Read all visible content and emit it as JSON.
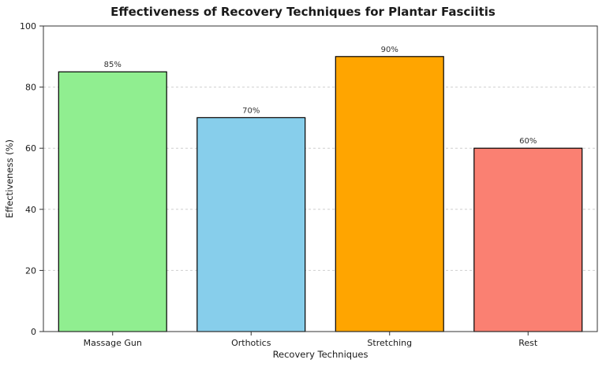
{
  "title": "Effectiveness of Recovery Techniques for Plantar Fasciitis",
  "chart_data": {
    "type": "bar",
    "title": "Effectiveness of Recovery Techniques for Plantar Fasciitis",
    "xlabel": "Recovery Techniques",
    "ylabel": "Effectiveness (%)",
    "categories": [
      "Massage Gun",
      "Orthotics",
      "Stretching",
      "Rest"
    ],
    "values": [
      85,
      70,
      90,
      60
    ],
    "value_labels": [
      "85%",
      "70%",
      "90%",
      "60%"
    ],
    "bar_colors": [
      "#90EE90",
      "#87CEEB",
      "#FFA500",
      "#FA8072"
    ],
    "bar_edge_color": "#000000",
    "ylim": [
      0,
      100
    ],
    "yticks": [
      0,
      20,
      40,
      60,
      80,
      100
    ],
    "ytick_labels": [
      "0",
      "20",
      "40",
      "60",
      "80",
      "100"
    ],
    "grid": "horizontal-dashed",
    "grid_color": "#cfcfcf",
    "spine_color": "#333333",
    "background": "#ffffff",
    "legend": "none"
  }
}
